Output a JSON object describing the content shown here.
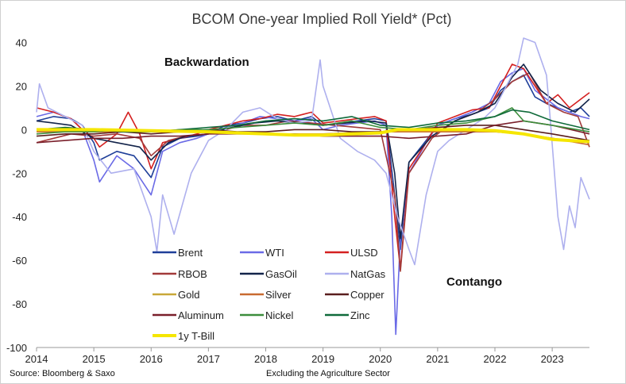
{
  "chart_data": {
    "type": "line",
    "title": "BCOM One-year Implied Roll Yield* (Pct)",
    "source": "Source: Bloomberg & Saxo",
    "footnote": "Excluding the Agriculture Sector",
    "annotations": {
      "top": "Backwardation",
      "bottom": "Contango"
    },
    "xlabel": "",
    "ylabel": "",
    "xlim": [
      2014.0,
      2023.65
    ],
    "ylim": [
      -100,
      42
    ],
    "x_ticks": [
      2014,
      2015,
      2016,
      2017,
      2018,
      2019,
      2020,
      2021,
      2022,
      2023
    ],
    "y_ticks": [
      40,
      20,
      0,
      -20,
      -40,
      -60,
      -80,
      -100
    ],
    "grid": false,
    "legend_position": "lower-left",
    "series": [
      {
        "name": "Brent",
        "color": "#1f3f99",
        "x": [
          2014.0,
          2014.3,
          2014.6,
          2014.8,
          2015.0,
          2015.1,
          2015.4,
          2015.7,
          2016.0,
          2016.2,
          2016.5,
          2016.8,
          2017.0,
          2017.3,
          2017.6,
          2017.9,
          2018.2,
          2018.5,
          2018.8,
          2019.0,
          2019.3,
          2019.6,
          2019.9,
          2020.1,
          2020.25,
          2020.35,
          2020.5,
          2020.8,
          2021.0,
          2021.3,
          2021.6,
          2021.9,
          2022.1,
          2022.3,
          2022.5,
          2022.7,
          2022.9,
          2023.1,
          2023.3,
          2023.5,
          2023.65
        ],
        "values": [
          4,
          6,
          5,
          2,
          -6,
          -14,
          -10,
          -12,
          -22,
          -8,
          -4,
          -3,
          -2,
          2,
          3,
          5,
          6,
          4,
          6,
          2,
          3,
          4,
          5,
          4,
          -30,
          -55,
          -15,
          -5,
          2,
          5,
          7,
          10,
          18,
          22,
          25,
          15,
          12,
          10,
          8,
          10,
          6
        ]
      },
      {
        "name": "WTI",
        "color": "#6a6ae6",
        "x": [
          2014.0,
          2014.3,
          2014.6,
          2014.8,
          2015.0,
          2015.1,
          2015.4,
          2015.7,
          2016.0,
          2016.2,
          2016.5,
          2016.8,
          2017.0,
          2017.3,
          2017.6,
          2017.9,
          2018.2,
          2018.5,
          2018.8,
          2019.0,
          2019.3,
          2019.6,
          2019.9,
          2020.1,
          2020.2,
          2020.27,
          2020.35,
          2020.5,
          2020.8,
          2021.0,
          2021.3,
          2021.6,
          2021.9,
          2022.1,
          2022.3,
          2022.5,
          2022.7,
          2022.9,
          2023.1,
          2023.3,
          2023.5,
          2023.65
        ],
        "values": [
          6,
          8,
          5,
          0,
          -14,
          -24,
          -12,
          -18,
          -30,
          -10,
          -6,
          -4,
          -2,
          1,
          3,
          6,
          5,
          4,
          5,
          0,
          2,
          3,
          4,
          2,
          -40,
          -94,
          -50,
          -20,
          -6,
          2,
          5,
          8,
          12,
          22,
          26,
          28,
          18,
          14,
          10,
          8,
          6,
          5
        ]
      },
      {
        "name": "ULSD",
        "color": "#d42020",
        "x": [
          2014.0,
          2014.3,
          2014.6,
          2014.8,
          2015.0,
          2015.1,
          2015.4,
          2015.6,
          2015.8,
          2016.0,
          2016.2,
          2016.5,
          2016.8,
          2017.0,
          2017.3,
          2017.6,
          2017.9,
          2018.2,
          2018.5,
          2018.8,
          2019.0,
          2019.3,
          2019.6,
          2019.9,
          2020.1,
          2020.25,
          2020.35,
          2020.5,
          2020.8,
          2021.0,
          2021.3,
          2021.6,
          2021.9,
          2022.1,
          2022.3,
          2022.5,
          2022.7,
          2022.9,
          2023.1,
          2023.3,
          2023.5,
          2023.65
        ],
        "values": [
          10,
          8,
          5,
          0,
          -4,
          -8,
          -2,
          8,
          -2,
          -18,
          -6,
          -4,
          -2,
          0,
          2,
          4,
          5,
          7,
          6,
          8,
          3,
          4,
          5,
          6,
          4,
          -40,
          -64,
          -18,
          -6,
          3,
          6,
          9,
          10,
          20,
          30,
          28,
          20,
          12,
          16,
          10,
          14,
          17
        ]
      },
      {
        "name": "RBOB",
        "color": "#a23a3a",
        "x": [
          2014.0,
          2014.3,
          2014.6,
          2015.0,
          2015.4,
          2015.8,
          2016.0,
          2016.3,
          2016.6,
          2017.0,
          2017.3,
          2017.6,
          2018.0,
          2018.4,
          2018.8,
          2019.2,
          2019.6,
          2020.0,
          2020.25,
          2020.35,
          2020.5,
          2020.9,
          2021.3,
          2021.7,
          2022.0,
          2022.3,
          2022.6,
          2022.9,
          2023.2,
          2023.45,
          2023.65
        ],
        "values": [
          -6,
          -4,
          -2,
          -3,
          -2,
          -4,
          -12,
          -5,
          -3,
          -2,
          0,
          2,
          2,
          4,
          3,
          2,
          1,
          0,
          -30,
          -65,
          -20,
          -4,
          4,
          8,
          14,
          22,
          26,
          12,
          8,
          6,
          -8
        ]
      },
      {
        "name": "GasOil",
        "color": "#13244a",
        "x": [
          2014.0,
          2014.3,
          2014.6,
          2015.0,
          2015.4,
          2015.8,
          2016.0,
          2016.3,
          2016.6,
          2017.0,
          2017.4,
          2017.8,
          2018.2,
          2018.6,
          2019.0,
          2019.4,
          2019.8,
          2020.1,
          2020.25,
          2020.35,
          2020.5,
          2020.9,
          2021.3,
          2021.7,
          2022.0,
          2022.3,
          2022.5,
          2022.8,
          2023.1,
          2023.4,
          2023.65
        ],
        "values": [
          4,
          3,
          2,
          -4,
          -6,
          -8,
          -14,
          -6,
          -3,
          -2,
          1,
          3,
          4,
          3,
          2,
          3,
          4,
          3,
          -20,
          -50,
          -15,
          -3,
          4,
          8,
          12,
          24,
          30,
          18,
          12,
          8,
          14
        ]
      },
      {
        "name": "NatGas",
        "color": "#aeb0ee",
        "x": [
          2014.0,
          2014.05,
          2014.2,
          2014.5,
          2014.8,
          2015.0,
          2015.3,
          2015.7,
          2016.0,
          2016.1,
          2016.2,
          2016.4,
          2016.7,
          2017.0,
          2017.3,
          2017.6,
          2017.9,
          2018.2,
          2018.5,
          2018.8,
          2018.95,
          2019.0,
          2019.3,
          2019.6,
          2019.9,
          2020.1,
          2020.3,
          2020.5,
          2020.6,
          2020.8,
          2021.0,
          2021.2,
          2021.5,
          2021.8,
          2022.0,
          2022.2,
          2022.4,
          2022.5,
          2022.7,
          2022.9,
          2022.95,
          2023.1,
          2023.2,
          2023.3,
          2023.4,
          2023.5,
          2023.65
        ],
        "values": [
          8,
          21,
          10,
          6,
          2,
          -10,
          -20,
          -18,
          -40,
          -56,
          -30,
          -48,
          -20,
          -5,
          0,
          8,
          10,
          5,
          3,
          4,
          32,
          20,
          -4,
          -10,
          -14,
          -20,
          -40,
          -55,
          -62,
          -30,
          -10,
          -5,
          0,
          5,
          10,
          20,
          30,
          42,
          40,
          25,
          10,
          -40,
          -55,
          -35,
          -45,
          -22,
          -32
        ]
      },
      {
        "name": "Gold",
        "color": "#c8a838",
        "x": [
          2014.0,
          2015.0,
          2016.0,
          2017.0,
          2018.0,
          2019.0,
          2020.0,
          2021.0,
          2022.0,
          2022.5,
          2023.0,
          2023.65
        ],
        "values": [
          -1,
          -1,
          -1,
          -1,
          -2,
          -2,
          -1,
          -1,
          -1,
          -2,
          -4,
          -6
        ]
      },
      {
        "name": "Silver",
        "color": "#c86a30",
        "x": [
          2014.0,
          2015.0,
          2016.0,
          2017.0,
          2018.0,
          2019.0,
          2020.0,
          2021.0,
          2022.0,
          2022.5,
          2023.0,
          2023.65
        ],
        "values": [
          -1,
          -1,
          -1,
          -1,
          -2,
          -2,
          -1,
          -1,
          -1,
          -2,
          -4,
          -7
        ]
      },
      {
        "name": "Copper",
        "color": "#5a1e1e",
        "x": [
          2014.0,
          2014.5,
          2015.0,
          2015.5,
          2016.0,
          2016.5,
          2017.0,
          2017.5,
          2018.0,
          2018.5,
          2019.0,
          2019.5,
          2020.0,
          2020.5,
          2021.0,
          2021.5,
          2022.0,
          2022.5,
          2023.0,
          2023.65
        ],
        "values": [
          -3,
          -2,
          -2,
          -1,
          -2,
          -1,
          0,
          -1,
          -1,
          0,
          0,
          -1,
          -1,
          0,
          1,
          2,
          2,
          0,
          -2,
          -5
        ]
      },
      {
        "name": "Aluminum",
        "color": "#7a1f2a",
        "x": [
          2014.0,
          2014.5,
          2015.0,
          2015.5,
          2016.0,
          2016.5,
          2017.0,
          2017.5,
          2018.0,
          2018.5,
          2019.0,
          2019.5,
          2020.0,
          2020.5,
          2021.0,
          2021.5,
          2022.0,
          2022.5,
          2023.0,
          2023.65
        ],
        "values": [
          -6,
          -5,
          -4,
          -4,
          -3,
          -3,
          -2,
          -2,
          -2,
          -2,
          -3,
          -3,
          -3,
          -4,
          -3,
          -2,
          2,
          4,
          2,
          -2
        ]
      },
      {
        "name": "Nickel",
        "color": "#3c8e3c",
        "x": [
          2014.0,
          2014.5,
          2015.0,
          2015.5,
          2016.0,
          2016.5,
          2017.0,
          2017.5,
          2018.0,
          2018.5,
          2019.0,
          2019.5,
          2020.0,
          2020.5,
          2021.0,
          2021.5,
          2022.0,
          2022.3,
          2022.5,
          2023.0,
          2023.65
        ],
        "values": [
          -2,
          -1,
          -1,
          0,
          -1,
          0,
          0,
          1,
          2,
          3,
          2,
          4,
          1,
          0,
          2,
          3,
          6,
          10,
          4,
          2,
          -1
        ]
      },
      {
        "name": "Zinc",
        "color": "#0f6a3a",
        "x": [
          2014.0,
          2014.5,
          2015.0,
          2015.5,
          2016.0,
          2016.5,
          2017.0,
          2017.5,
          2018.0,
          2018.5,
          2019.0,
          2019.5,
          2020.0,
          2020.5,
          2021.0,
          2021.5,
          2022.0,
          2022.3,
          2022.6,
          2023.0,
          2023.65
        ],
        "values": [
          0,
          1,
          0,
          -1,
          -1,
          0,
          1,
          2,
          4,
          5,
          4,
          6,
          2,
          1,
          3,
          4,
          6,
          9,
          8,
          4,
          0
        ]
      },
      {
        "name": "1y T-Bill",
        "color": "#f5e600",
        "x": [
          2014.0,
          2015.0,
          2016.0,
          2017.0,
          2017.5,
          2018.0,
          2018.5,
          2019.0,
          2019.5,
          2020.0,
          2020.3,
          2021.0,
          2021.5,
          2022.0,
          2022.5,
          2023.0,
          2023.3,
          2023.65
        ],
        "values": [
          0,
          0,
          -0.5,
          -1,
          -1.5,
          -2,
          -2.5,
          -2.5,
          -2,
          -1.5,
          0,
          0,
          0,
          -0.5,
          -2,
          -4.5,
          -5,
          -5.5
        ]
      }
    ]
  }
}
